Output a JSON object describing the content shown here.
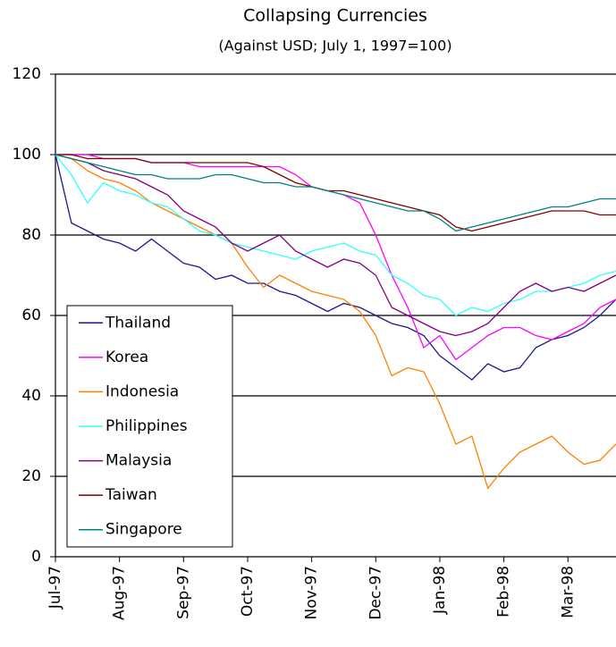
{
  "chart_data": {
    "type": "line",
    "title": "Collapsing Currencies",
    "subtitle": "(Against USD; July 1, 1997=100)",
    "categories": [
      "Jul-97",
      null,
      null,
      null,
      "Aug-97",
      null,
      null,
      null,
      "Sep-97",
      null,
      null,
      null,
      "Oct-97",
      null,
      null,
      null,
      "Nov-97",
      null,
      null,
      null,
      "Dec-97",
      null,
      null,
      null,
      "Jan-98",
      null,
      null,
      null,
      "Feb-98",
      null,
      null,
      null,
      "Mar-98",
      null,
      null,
      null
    ],
    "series": [
      {
        "name": "Thailand",
        "color": "#1a1a8c",
        "values": [
          100,
          83,
          81,
          79,
          78,
          76,
          79,
          76,
          73,
          72,
          69,
          70,
          68,
          68,
          66,
          65,
          63,
          61,
          63,
          62,
          60,
          58,
          57,
          55,
          50,
          47,
          44,
          48,
          46,
          47,
          52,
          54,
          55,
          57,
          60,
          64
        ]
      },
      {
        "name": "Korea",
        "color": "#ff00ff",
        "values": [
          100,
          100,
          100,
          99,
          99,
          99,
          98,
          98,
          98,
          97,
          97,
          97,
          97,
          97,
          97,
          95,
          92,
          91,
          90,
          88,
          80,
          70,
          62,
          52,
          55,
          49,
          52,
          55,
          57,
          57,
          55,
          54,
          56,
          58,
          62,
          64
        ]
      },
      {
        "name": "Indonesia",
        "color": "#ff8000",
        "values": [
          100,
          99,
          96,
          94,
          93,
          91,
          88,
          86,
          84,
          82,
          80,
          78,
          72,
          67,
          70,
          68,
          66,
          65,
          64,
          61,
          55,
          45,
          47,
          46,
          38,
          28,
          30,
          17,
          22,
          26,
          28,
          30,
          26,
          23,
          24,
          28
        ]
      },
      {
        "name": "Philippines",
        "color": "#33ffff",
        "values": [
          100,
          95,
          88,
          93,
          91,
          90,
          88,
          87,
          84,
          81,
          80,
          78,
          77,
          76,
          75,
          74,
          76,
          77,
          78,
          76,
          75,
          70,
          68,
          65,
          64,
          60,
          62,
          61,
          63,
          64,
          66,
          66,
          67,
          68,
          70,
          71
        ]
      },
      {
        "name": "Malaysia",
        "color": "#800080",
        "values": [
          100,
          99,
          98,
          96,
          95,
          94,
          92,
          90,
          86,
          84,
          82,
          78,
          76,
          78,
          80,
          76,
          74,
          72,
          74,
          73,
          70,
          62,
          60,
          58,
          56,
          55,
          56,
          58,
          62,
          66,
          68,
          66,
          67,
          66,
          68,
          70
        ]
      },
      {
        "name": "Taiwan",
        "color": "#800000",
        "values": [
          100,
          100,
          99,
          99,
          99,
          99,
          98,
          98,
          98,
          98,
          98,
          98,
          98,
          97,
          95,
          93,
          92,
          91,
          91,
          90,
          89,
          88,
          87,
          86,
          85,
          82,
          81,
          82,
          83,
          84,
          85,
          86,
          86,
          86,
          85,
          85
        ]
      },
      {
        "name": "Singapore",
        "color": "#008080",
        "values": [
          100,
          99,
          98,
          97,
          96,
          95,
          95,
          94,
          94,
          94,
          95,
          95,
          94,
          93,
          93,
          92,
          92,
          91,
          90,
          89,
          88,
          87,
          86,
          86,
          84,
          81,
          82,
          83,
          84,
          85,
          86,
          87,
          87,
          88,
          89,
          89
        ]
      }
    ],
    "ylim": [
      0,
      120
    ],
    "yticks": [
      0,
      20,
      40,
      60,
      80,
      100,
      120
    ],
    "grid": true,
    "legend": "lower left"
  }
}
